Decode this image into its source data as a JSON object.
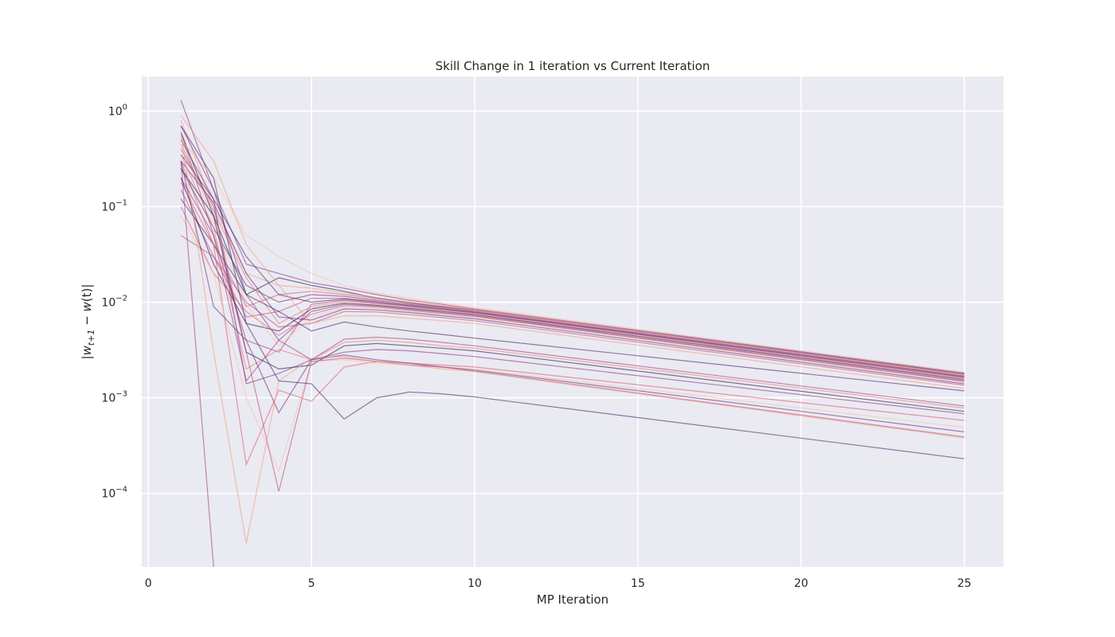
{
  "chart_data": {
    "type": "line",
    "title": "Skill Change in 1 iteration vs Current Iteration",
    "xlabel": "MP Iteration",
    "ylabel": "|w_{t+1} − w(t)|",
    "ylabel_parts": {
      "pipe_open": "|",
      "w1": "w",
      "sub1": "t+1",
      "minus": " − ",
      "w2": "w",
      "paren": "(t)",
      "pipe_close": "|"
    },
    "xscale": "linear",
    "yscale": "log",
    "xlim": [
      -0.2,
      26.2
    ],
    "ylim": [
      1.7e-05,
      2.3
    ],
    "xticks": [
      {
        "value": 0,
        "label": "0"
      },
      {
        "value": 5,
        "label": "5"
      },
      {
        "value": 10,
        "label": "10"
      },
      {
        "value": 15,
        "label": "15"
      },
      {
        "value": 20,
        "label": "20"
      },
      {
        "value": 25,
        "label": "25"
      }
    ],
    "yticks": [
      {
        "value": 1,
        "base": "10",
        "exp": "0"
      },
      {
        "value": 0.1,
        "base": "10",
        "exp": "−1"
      },
      {
        "value": 0.01,
        "base": "10",
        "exp": "−2"
      },
      {
        "value": 0.001,
        "base": "10",
        "exp": "−3"
      },
      {
        "value": 0.0001,
        "base": "10",
        "exp": "−4"
      }
    ],
    "grid": true,
    "legend": "none",
    "colors": {
      "background": "#eaeaf2",
      "grid": "#ffffff",
      "palette": [
        "#2b1a4c",
        "#4a2a6b",
        "#6b2f7c",
        "#8a3480",
        "#a83b7e",
        "#c5487a",
        "#dc5a70",
        "#ec7a6e",
        "#f39b7e",
        "#f7c2a0"
      ]
    },
    "x": [
      1,
      2,
      3,
      4,
      5,
      6,
      7,
      8,
      9,
      10,
      25
    ],
    "series": [
      {
        "values": [
          0.6,
          0.08,
          0.012,
          0.018,
          0.015,
          0.013,
          0.011,
          0.0098,
          0.009,
          0.0083,
          0.00178
        ]
      },
      {
        "values": [
          1.3,
          0.15,
          0.025,
          0.02,
          0.016,
          0.014,
          0.012,
          0.0105,
          0.0095,
          0.0085,
          0.00182
        ]
      },
      {
        "values": [
          0.3,
          0.04,
          0.009,
          0.012,
          0.013,
          0.012,
          0.011,
          0.0099,
          0.009,
          0.0082,
          0.00175
        ]
      },
      {
        "values": [
          0.5,
          0.2,
          0.05,
          0.03,
          0.02,
          0.015,
          0.0125,
          0.011,
          0.0098,
          0.0088,
          0.00185
        ]
      },
      {
        "values": [
          0.25,
          0.06,
          0.015,
          0.01,
          0.012,
          0.0115,
          0.0105,
          0.0095,
          0.0088,
          0.008,
          0.0017
        ]
      },
      {
        "values": [
          0.15,
          0.03,
          0.007,
          0.008,
          0.011,
          0.011,
          0.0102,
          0.0093,
          0.0086,
          0.0079,
          0.00168
        ]
      },
      {
        "values": [
          0.8,
          0.1,
          0.02,
          0.015,
          0.014,
          0.0125,
          0.0112,
          0.0101,
          0.0092,
          0.0084,
          0.00172
        ]
      },
      {
        "values": [
          0.35,
          0.12,
          0.03,
          0.012,
          0.01,
          0.0108,
          0.01,
          0.0092,
          0.0085,
          0.0078,
          0.00165
        ]
      },
      {
        "values": [
          0.6,
          0.05,
          0.004,
          0.003,
          0.0095,
          0.0105,
          0.0098,
          0.009,
          0.0083,
          0.0077,
          0.00162
        ]
      },
      {
        "values": [
          0.45,
          0.09,
          0.018,
          0.006,
          0.009,
          0.0102,
          0.0096,
          0.0088,
          0.0082,
          0.0075,
          0.00158
        ]
      },
      {
        "values": [
          0.2,
          0.025,
          0.006,
          0.005,
          0.0085,
          0.0098,
          0.0093,
          0.0086,
          0.008,
          0.0074,
          0.00155
        ]
      },
      {
        "values": [
          0.7,
          0.15,
          0.012,
          0.004,
          0.008,
          0.0095,
          0.0091,
          0.0084,
          0.0078,
          0.0072,
          0.0015
        ]
      },
      {
        "values": [
          0.1,
          0.02,
          0.008,
          0.0045,
          0.0075,
          0.0092,
          0.0089,
          0.0082,
          0.0076,
          0.0071,
          0.00148
        ]
      },
      {
        "values": [
          0.55,
          0.07,
          0.0095,
          0.0035,
          0.007,
          0.0088,
          0.0086,
          0.008,
          0.0074,
          0.0069,
          0.00145
        ]
      },
      {
        "values": [
          0.3,
          0.11,
          0.02,
          0.007,
          0.0065,
          0.0085,
          0.0083,
          0.0078,
          0.0072,
          0.0067,
          0.0014
        ]
      },
      {
        "values": [
          0.05,
          0.03,
          0.01,
          0.0055,
          0.006,
          0.008,
          0.0079,
          0.0074,
          0.0069,
          0.0064,
          0.00135
        ]
      },
      {
        "values": [
          0.9,
          0.3,
          0.04,
          0.015,
          0.006,
          0.0072,
          0.0072,
          0.0068,
          0.0064,
          0.006,
          0.00125
        ]
      },
      {
        "values": [
          0.12,
          0.04,
          0.012,
          0.008,
          0.005,
          0.0062,
          0.0055,
          0.005,
          0.0046,
          0.0042,
          0.00118
        ]
      },
      {
        "values": [
          0.2,
          0.05,
          0.0015,
          0.004,
          0.0025,
          0.0041,
          0.0043,
          0.0041,
          0.0038,
          0.0035,
          0.00082
        ]
      },
      {
        "values": [
          0.35,
          0.06,
          0.002,
          0.0032,
          0.0025,
          0.0038,
          0.004,
          0.0038,
          0.0035,
          0.0033,
          0.00078
        ]
      },
      {
        "values": [
          0.25,
          0.08,
          0.003,
          0.002,
          0.0022,
          0.0035,
          0.0037,
          0.0035,
          0.0033,
          0.0031,
          0.00072
        ]
      },
      {
        "values": [
          0.5,
          0.12,
          0.0014,
          0.0018,
          0.0025,
          0.003,
          0.0032,
          0.0031,
          0.0029,
          0.0027,
          0.00068
        ]
      },
      {
        "values": [
          0.18,
          0.04,
          0.0002,
          0.0012,
          0.00092,
          0.0021,
          0.0024,
          0.0023,
          0.0022,
          0.0021,
          0.00058
        ]
      },
      {
        "values": [
          0.08,
          0.02,
          0.001,
          0.00017,
          0.0024,
          0.0025,
          0.0023,
          0.0022,
          0.0021,
          0.002,
          0.00049
        ]
      },
      {
        "values": [
          0.3,
          0.009,
          0.004,
          0.0007,
          0.0025,
          0.0028,
          0.0025,
          0.0023,
          0.0021,
          0.00195,
          0.00044
        ]
      },
      {
        "values": [
          0.4,
          0.1,
          0.003,
          0.000105,
          0.0024,
          0.0026,
          0.0024,
          0.0022,
          0.0021,
          0.0019,
          0.00039
        ]
      },
      {
        "values": [
          0.6,
          0.003,
          3e-05,
          0.0015,
          0.0026,
          0.0027,
          0.0024,
          0.0022,
          0.002,
          0.00188,
          0.00038
        ]
      },
      {
        "values": [
          0.7,
          0.2,
          0.006,
          0.0015,
          0.0014,
          0.0006,
          0.001,
          0.00115,
          0.0011,
          0.00102,
          0.00023
        ]
      },
      {
        "values": [
          0.3,
          1.7e-05,
          null,
          null,
          null,
          null,
          null,
          null,
          null,
          null,
          null
        ]
      }
    ]
  }
}
